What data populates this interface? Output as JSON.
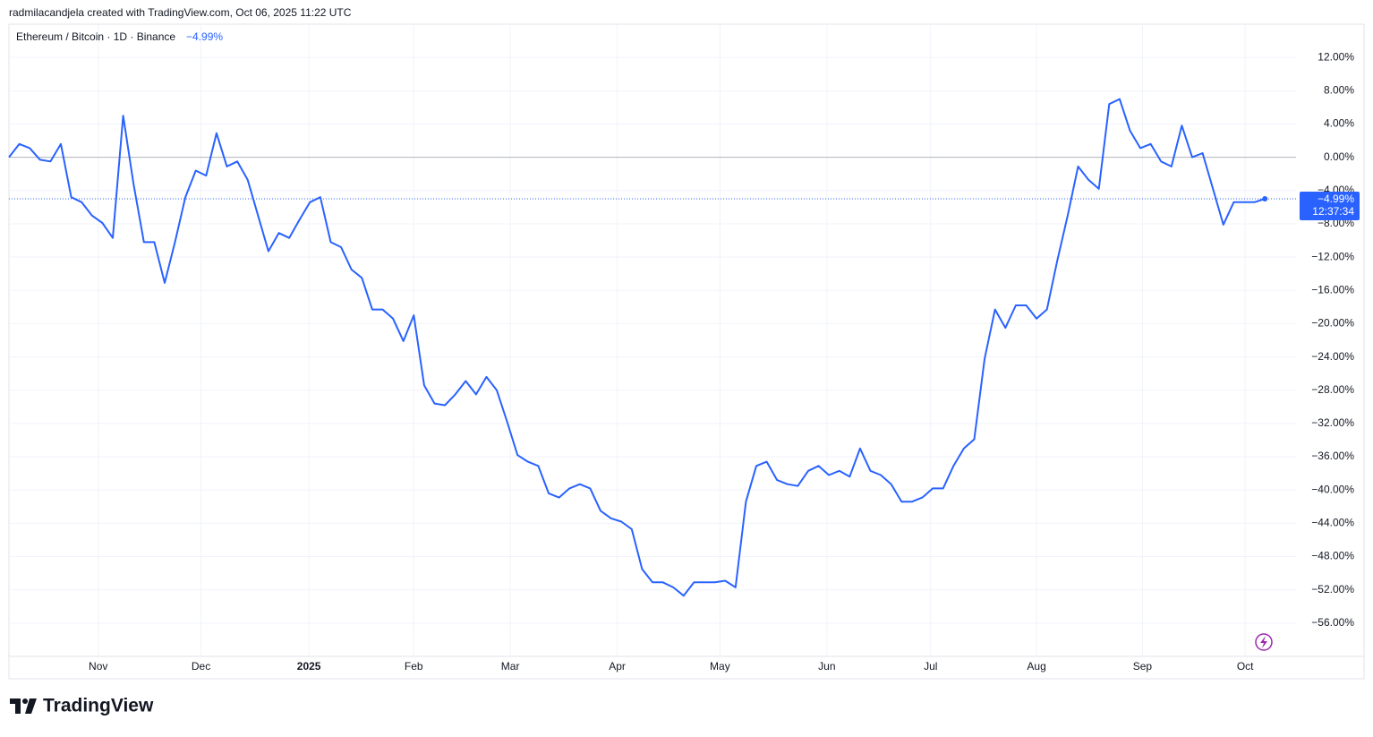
{
  "header": "radmilacandjela created with TradingView.com, Oct 06, 2025 11:22 UTC",
  "branding": "TradingView",
  "chart_data": {
    "type": "line",
    "title": "Ethereum / Bitcoin · 1D · Binance",
    "change": {
      "value": -4.99,
      "label": "−4.99%"
    },
    "price_label": {
      "value": -4.99,
      "label": "−4.99%",
      "countdown": "12:37:34"
    },
    "series": [
      {
        "name": "Ethereum / Bitcoin",
        "color": "#2962ff",
        "values": [
          0,
          1.6,
          1.1,
          -0.3,
          -0.5,
          1.6,
          -4.8,
          -5.4,
          -7.0,
          -7.9,
          -9.7,
          5.0,
          -3.2,
          -10.2,
          -10.2,
          -15.1,
          -10.2,
          -4.8,
          -1.6,
          -2.2,
          2.9,
          -1.1,
          -0.5,
          -2.7,
          -7.0,
          -11.3,
          -9.1,
          -9.7,
          -7.5,
          -5.4,
          -4.8,
          -10.2,
          -10.8,
          -13.5,
          -14.5,
          -18.3,
          -18.3,
          -19.4,
          -22.1,
          -19.0,
          -27.4,
          -29.6,
          -29.8,
          -28.5,
          -26.9,
          -28.5,
          -26.4,
          -28.0,
          -31.8,
          -35.8,
          -36.6,
          -37.1,
          -40.4,
          -40.9,
          -39.8,
          -39.3,
          -39.8,
          -42.5,
          -43.4,
          -43.8,
          -44.7,
          -49.5,
          -51.1,
          -51.1,
          -51.7,
          -52.7,
          -51.1,
          -51.1,
          -51.1,
          -50.9,
          -51.7,
          -41.4,
          -37.1,
          -36.6,
          -38.8,
          -39.3,
          -39.5,
          -37.7,
          -37.1,
          -38.2,
          -37.7,
          -38.4,
          -35.0,
          -37.7,
          -38.2,
          -39.3,
          -41.4,
          -41.4,
          -40.9,
          -39.8,
          -39.8,
          -37.1,
          -35.0,
          -33.9,
          -24.2,
          -18.3,
          -20.5,
          -17.8,
          -17.8,
          -19.4,
          -18.3,
          -12.4,
          -7.0,
          -1.1,
          -2.7,
          -3.8,
          6.4,
          7.0,
          3.2,
          1.1,
          1.6,
          -0.5,
          -1.1,
          3.8,
          0,
          0.5,
          -3.8,
          -8.1,
          -5.4,
          -5.4,
          -5.4,
          -4.99
        ]
      }
    ],
    "xlim": [
      0,
      124
    ],
    "xticks": [
      {
        "value": 8.6,
        "label": "Nov"
      },
      {
        "value": 18.5,
        "label": "Dec"
      },
      {
        "value": 28.9,
        "label": "2025"
      },
      {
        "value": 39.0,
        "label": "Feb"
      },
      {
        "value": 48.3,
        "label": "Mar"
      },
      {
        "value": 58.6,
        "label": "Apr"
      },
      {
        "value": 68.5,
        "label": "May"
      },
      {
        "value": 78.8,
        "label": "Jun"
      },
      {
        "value": 88.8,
        "label": "Jul"
      },
      {
        "value": 99.0,
        "label": "Aug"
      },
      {
        "value": 109.2,
        "label": "Sep"
      },
      {
        "value": 119.1,
        "label": "Oct"
      }
    ],
    "ylim": [
      -60,
      16
    ],
    "yticks": [
      {
        "value": 12,
        "label": "12.00%"
      },
      {
        "value": 8,
        "label": "8.00%"
      },
      {
        "value": 4,
        "label": "4.00%"
      },
      {
        "value": 0,
        "label": "0.00%"
      },
      {
        "value": -4,
        "label": "−4.00%"
      },
      {
        "value": -8,
        "label": "−8.00%"
      },
      {
        "value": -12,
        "label": "−12.00%"
      },
      {
        "value": -16,
        "label": "−16.00%"
      },
      {
        "value": -20,
        "label": "−20.00%"
      },
      {
        "value": -24,
        "label": "−24.00%"
      },
      {
        "value": -28,
        "label": "−28.00%"
      },
      {
        "value": -32,
        "label": "−32.00%"
      },
      {
        "value": -36,
        "label": "−36.00%"
      },
      {
        "value": -40,
        "label": "−40.00%"
      },
      {
        "value": -44,
        "label": "−44.00%"
      },
      {
        "value": -48,
        "label": "−48.00%"
      },
      {
        "value": -52,
        "label": "−52.00%"
      },
      {
        "value": -56,
        "label": "−56.00%"
      }
    ],
    "grid": true,
    "baseline": 0
  }
}
